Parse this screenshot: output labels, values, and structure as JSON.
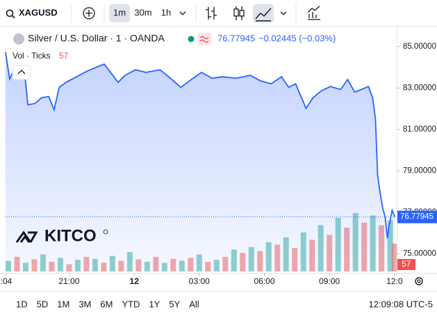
{
  "toolbar": {
    "symbol": "XAGUSD",
    "intervals": [
      "1m",
      "30m",
      "1h"
    ]
  },
  "chart_data": [
    {
      "type": "line",
      "legend_title": "Silver / U.S. Dollar · 1 · OANDA",
      "change": "−0.02445 (−0.03%)",
      "last_price": {
        "value": 76.77945,
        "label": "76.77945"
      },
      "x": [
        -5.93,
        -5.74,
        -5.54,
        -5.29,
        -5.03,
        -4.9,
        -4.58,
        -4.26,
        -3.94,
        -3.69,
        -3.46,
        -3.14,
        -2.66,
        -2.18,
        -1.7,
        -1.38,
        -1.06,
        -0.74,
        -0.42,
        0.06,
        0.54,
        1.19,
        1.67,
        2.15,
        2.63,
        3.11,
        3.59,
        4.07,
        4.71,
        5.35,
        5.83,
        6.31,
        6.79,
        7.12,
        7.44,
        7.92,
        8.24,
        8.62,
        9.04,
        9.52,
        9.84,
        10.16,
        10.48,
        10.8,
        10.99,
        11.12,
        11.22,
        11.31,
        11.44,
        11.57,
        11.67,
        11.76,
        11.89,
        12.02
      ],
      "series": [
        {
          "color": "#2962ff",
          "values": [
            84.73,
            83.44,
            83.88,
            83.75,
            83.54,
            82.19,
            82.25,
            82.53,
            82.59,
            81.95,
            83.03,
            83.27,
            83.54,
            83.81,
            84.02,
            84.15,
            83.71,
            83.27,
            83.61,
            83.88,
            83.75,
            83.88,
            83.47,
            83.03,
            83.41,
            83.75,
            83.47,
            83.54,
            83.47,
            83.61,
            83.34,
            83.2,
            83.54,
            83.03,
            83.2,
            82.02,
            82.53,
            82.86,
            83.07,
            82.93,
            83.41,
            82.8,
            82.93,
            83.07,
            82.53,
            81.51,
            78.8,
            78.12,
            77.27,
            76.76,
            75.75,
            76.42,
            77.1,
            76.78
          ]
        }
      ],
      "xlim": [
        -5.96,
        12.1
      ],
      "xticks": [
        {
          "value": -5.9,
          "label": ":04"
        },
        {
          "value": -3,
          "label": "21:00"
        },
        {
          "value": 0,
          "label": "12"
        },
        {
          "value": 3,
          "label": "03:00"
        },
        {
          "value": 6,
          "label": "06:00"
        },
        {
          "value": 9,
          "label": "09:00"
        },
        {
          "value": 12,
          "label": "12:0"
        }
      ],
      "ylim": [
        74.15,
        85.9
      ],
      "yticks": [
        {
          "value": 75,
          "label": "75.00000"
        },
        {
          "value": 77,
          "label": "77.00000"
        },
        {
          "value": 79,
          "label": "79.00000"
        },
        {
          "value": 81,
          "label": "81.00000"
        },
        {
          "value": 83,
          "label": "83.00000"
        },
        {
          "value": 85,
          "label": "85.00000"
        }
      ]
    },
    {
      "type": "bar",
      "title": "Vol · Ticks",
      "x": [
        -5.8,
        -5.4,
        -5,
        -4.6,
        -4.2,
        -3.8,
        -3.4,
        -3,
        -2.6,
        -2.2,
        -1.8,
        -1.4,
        -1,
        -0.6,
        -0.2,
        0.2,
        0.6,
        1,
        1.4,
        1.8,
        2.2,
        2.6,
        3,
        3.4,
        3.8,
        4.2,
        4.6,
        5,
        5.4,
        5.8,
        6.2,
        6.6,
        7,
        7.4,
        7.8,
        8.2,
        8.6,
        9,
        9.4,
        9.8,
        10.2,
        10.6,
        11,
        11.4,
        11.8,
        12
      ],
      "values": [
        22,
        30,
        18,
        25,
        35,
        20,
        28,
        15,
        24,
        30,
        26,
        18,
        32,
        22,
        40,
        25,
        20,
        30,
        18,
        26,
        22,
        28,
        35,
        20,
        24,
        30,
        45,
        38,
        50,
        42,
        60,
        55,
        70,
        48,
        80,
        65,
        95,
        75,
        110,
        90,
        120,
        100,
        115,
        95,
        105,
        57
      ],
      "colors": [
        "#26a69a",
        "#ef5350",
        "#26a69a",
        "#ef5350",
        "#26a69a",
        "#ef5350",
        "#26a69a",
        "#ef5350",
        "#26a69a",
        "#ef5350",
        "#26a69a",
        "#ef5350",
        "#26a69a",
        "#ef5350",
        "#26a69a",
        "#ef5350",
        "#26a69a",
        "#ef5350",
        "#26a69a",
        "#ef5350",
        "#26a69a",
        "#ef5350",
        "#26a69a",
        "#ef5350",
        "#26a69a",
        "#ef5350",
        "#26a69a",
        "#ef5350",
        "#26a69a",
        "#ef5350",
        "#26a69a",
        "#ef5350",
        "#26a69a",
        "#ef5350",
        "#26a69a",
        "#ef5350",
        "#26a69a",
        "#ef5350",
        "#26a69a",
        "#ef5350",
        "#26a69a",
        "#ef5350",
        "#26a69a",
        "#ef5350",
        "#26a69a",
        "#ef5350"
      ],
      "xlim": [
        -5.96,
        12.1
      ],
      "ylim": [
        0,
        500
      ]
    }
  ],
  "watermark": "KITCO",
  "range_buttons": [
    "1D",
    "5D",
    "1M",
    "3M",
    "6M",
    "YTD",
    "1Y",
    "5Y",
    "All"
  ],
  "clock": "12:09:08 UTC-5"
}
